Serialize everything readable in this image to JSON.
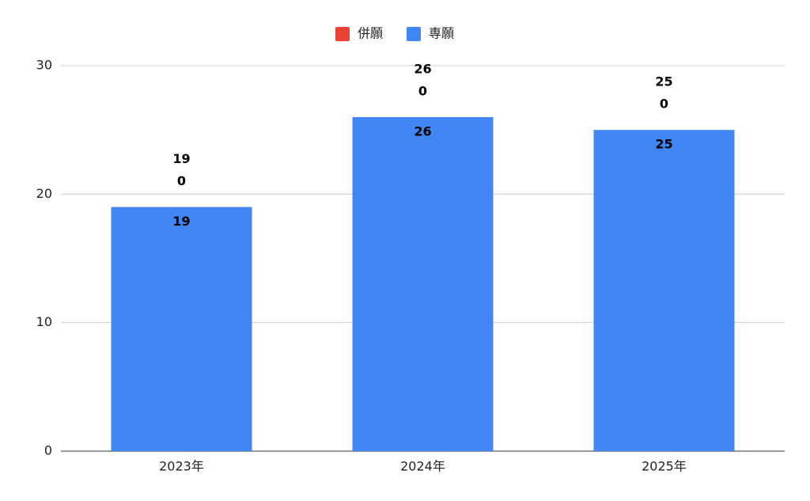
{
  "chart_data": {
    "type": "stacked_bar",
    "categories": [
      "2023年",
      "2024年",
      "2025年"
    ],
    "series": [
      {
        "name": "専願",
        "color": "#4285f4",
        "values": [
          19,
          26,
          25
        ]
      },
      {
        "name": "併願",
        "color": "#ea4335",
        "values": [
          0,
          0,
          0
        ]
      }
    ],
    "totals": [
      19,
      26,
      25
    ],
    "ylim": [
      0,
      30
    ],
    "yticks": [
      0,
      10,
      20,
      30
    ],
    "grid": true,
    "legend": "top"
  }
}
